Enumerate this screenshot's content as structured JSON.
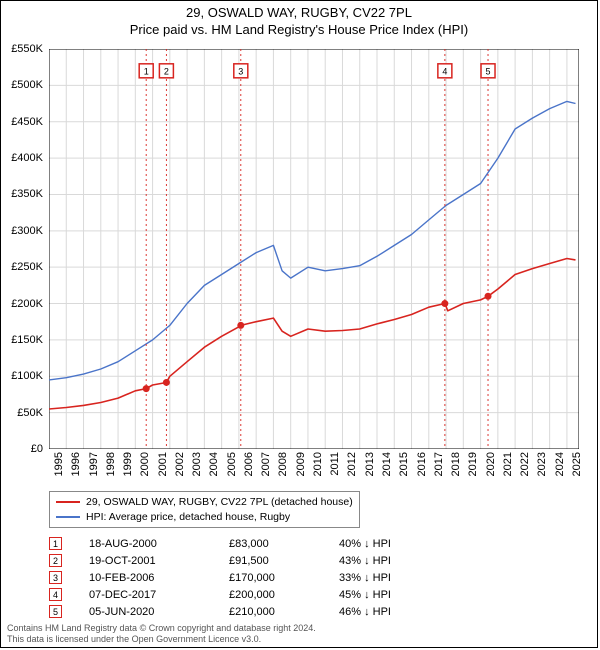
{
  "title_line1": "29, OSWALD WAY, RUGBY, CV22 7PL",
  "title_line2": "Price paid vs. HM Land Registry's House Price Index (HPI)",
  "chart": {
    "type": "line",
    "background_color": "#ffffff",
    "grid_color": "#d9d9d9",
    "axis_color": "#000000",
    "x_years": [
      1995,
      1996,
      1997,
      1998,
      1999,
      2000,
      2001,
      2002,
      2003,
      2004,
      2005,
      2006,
      2007,
      2008,
      2009,
      2010,
      2011,
      2012,
      2013,
      2014,
      2015,
      2016,
      2017,
      2018,
      2019,
      2020,
      2021,
      2022,
      2023,
      2024,
      2025
    ],
    "x_range": [
      1995,
      2025.7
    ],
    "y_range": [
      0,
      550000
    ],
    "y_ticks": [
      0,
      50000,
      100000,
      150000,
      200000,
      250000,
      300000,
      350000,
      400000,
      450000,
      500000,
      550000
    ],
    "y_tick_labels": [
      "£0",
      "£50K",
      "£100K",
      "£150K",
      "£200K",
      "£250K",
      "£300K",
      "£350K",
      "£400K",
      "£450K",
      "£500K",
      "£550K"
    ],
    "series": {
      "property": {
        "label": "29, OSWALD WAY, RUGBY, CV22 7PL (detached house)",
        "color": "#d8241f",
        "line_width": 1.6,
        "data": [
          [
            1995,
            55000
          ],
          [
            1996,
            57000
          ],
          [
            1997,
            60000
          ],
          [
            1998,
            64000
          ],
          [
            1999,
            70000
          ],
          [
            2000,
            80000
          ],
          [
            2000.63,
            83000
          ],
          [
            2001,
            88000
          ],
          [
            2001.8,
            91500
          ],
          [
            2002,
            100000
          ],
          [
            2003,
            120000
          ],
          [
            2004,
            140000
          ],
          [
            2005,
            155000
          ],
          [
            2006,
            168000
          ],
          [
            2006.11,
            170000
          ],
          [
            2007,
            175000
          ],
          [
            2008,
            180000
          ],
          [
            2008.5,
            162000
          ],
          [
            2009,
            155000
          ],
          [
            2010,
            165000
          ],
          [
            2011,
            162000
          ],
          [
            2012,
            163000
          ],
          [
            2013,
            165000
          ],
          [
            2014,
            172000
          ],
          [
            2015,
            178000
          ],
          [
            2016,
            185000
          ],
          [
            2017,
            195000
          ],
          [
            2017.93,
            200000
          ],
          [
            2018.1,
            190000
          ],
          [
            2019,
            200000
          ],
          [
            2020,
            205000
          ],
          [
            2020.43,
            210000
          ],
          [
            2021,
            220000
          ],
          [
            2022,
            240000
          ],
          [
            2023,
            248000
          ],
          [
            2024,
            255000
          ],
          [
            2025,
            262000
          ],
          [
            2025.5,
            260000
          ]
        ]
      },
      "hpi": {
        "label": "HPI: Average price, detached house, Rugby",
        "color": "#4a74c9",
        "line_width": 1.4,
        "data": [
          [
            1995,
            95000
          ],
          [
            1996,
            98000
          ],
          [
            1997,
            103000
          ],
          [
            1998,
            110000
          ],
          [
            1999,
            120000
          ],
          [
            2000,
            135000
          ],
          [
            2001,
            150000
          ],
          [
            2002,
            170000
          ],
          [
            2003,
            200000
          ],
          [
            2004,
            225000
          ],
          [
            2005,
            240000
          ],
          [
            2006,
            255000
          ],
          [
            2007,
            270000
          ],
          [
            2008,
            280000
          ],
          [
            2008.5,
            245000
          ],
          [
            2009,
            235000
          ],
          [
            2010,
            250000
          ],
          [
            2011,
            245000
          ],
          [
            2012,
            248000
          ],
          [
            2013,
            252000
          ],
          [
            2014,
            265000
          ],
          [
            2015,
            280000
          ],
          [
            2016,
            295000
          ],
          [
            2017,
            315000
          ],
          [
            2018,
            335000
          ],
          [
            2019,
            350000
          ],
          [
            2020,
            365000
          ],
          [
            2021,
            400000
          ],
          [
            2022,
            440000
          ],
          [
            2023,
            455000
          ],
          [
            2024,
            468000
          ],
          [
            2025,
            478000
          ],
          [
            2025.5,
            475000
          ]
        ]
      }
    },
    "sale_markers": [
      {
        "n": "1",
        "year": 2000.63,
        "price": 83000
      },
      {
        "n": "2",
        "year": 2001.8,
        "price": 91500
      },
      {
        "n": "3",
        "year": 2006.11,
        "price": 170000
      },
      {
        "n": "4",
        "year": 2017.93,
        "price": 200000
      },
      {
        "n": "5",
        "year": 2020.43,
        "price": 210000
      }
    ],
    "marker_box_color": "#d8241f",
    "marker_dot_color": "#d8241f",
    "marker_line_color": "#d8241f",
    "marker_line_dash": "2,3",
    "marker_dot_radius": 3.5,
    "marker_box_top_y": 520000
  },
  "legend": {
    "items": [
      {
        "color": "#d8241f",
        "label": "29, OSWALD WAY, RUGBY, CV22 7PL (detached house)"
      },
      {
        "color": "#4a74c9",
        "label": "HPI: Average price, detached house, Rugby"
      }
    ]
  },
  "sales_table": {
    "marker_border_color": "#d8241f",
    "rows": [
      {
        "n": "1",
        "date": "18-AUG-2000",
        "price": "£83,000",
        "delta": "40% ↓ HPI"
      },
      {
        "n": "2",
        "date": "19-OCT-2001",
        "price": "£91,500",
        "delta": "43% ↓ HPI"
      },
      {
        "n": "3",
        "date": "10-FEB-2006",
        "price": "£170,000",
        "delta": "33% ↓ HPI"
      },
      {
        "n": "4",
        "date": "07-DEC-2017",
        "price": "£200,000",
        "delta": "45% ↓ HPI"
      },
      {
        "n": "5",
        "date": "05-JUN-2020",
        "price": "£210,000",
        "delta": "46% ↓ HPI"
      }
    ]
  },
  "footer_line1": "Contains HM Land Registry data © Crown copyright and database right 2024.",
  "footer_line2": "This data is licensed under the Open Government Licence v3.0."
}
